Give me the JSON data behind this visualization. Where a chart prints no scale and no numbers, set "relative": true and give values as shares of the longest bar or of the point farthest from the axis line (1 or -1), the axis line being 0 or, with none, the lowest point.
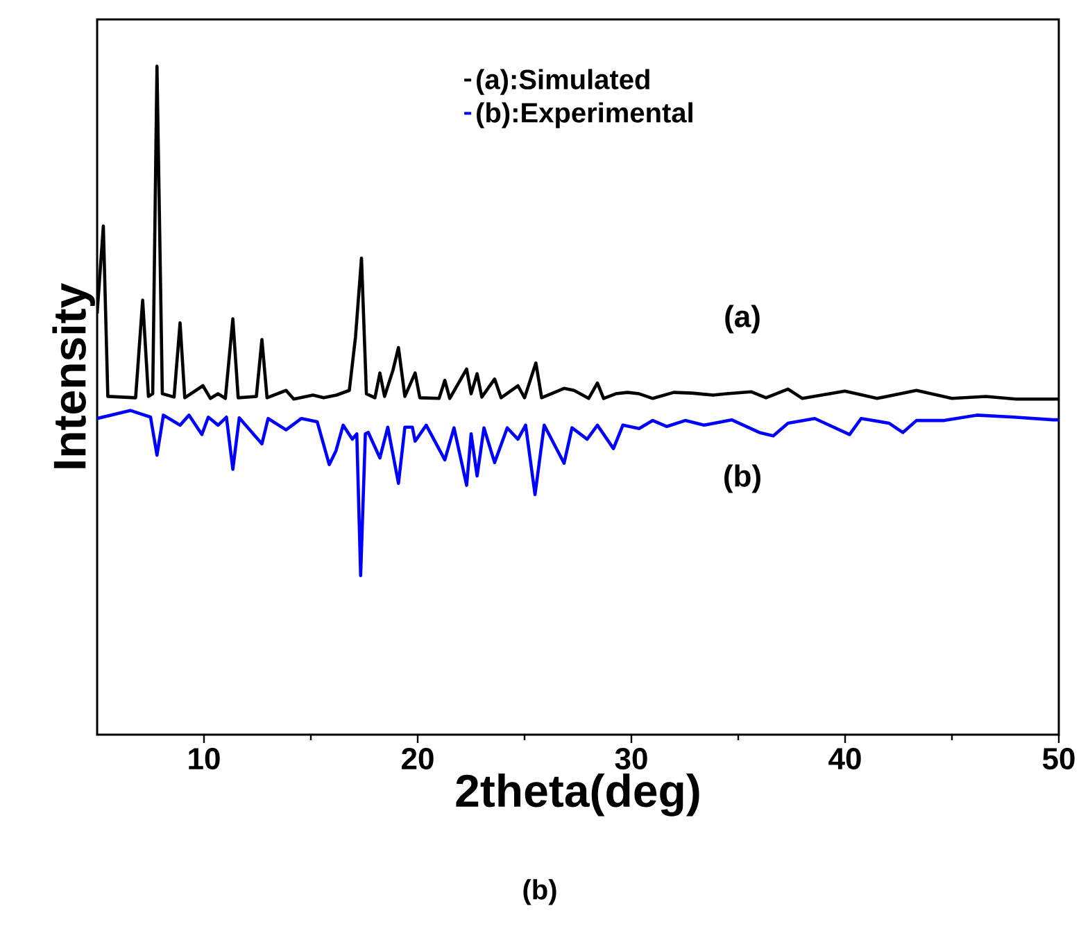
{
  "chart_data": {
    "type": "line",
    "relative": true,
    "xlabel": "2theta(deg)",
    "ylabel": "Intensity",
    "xlim": [
      5,
      50
    ],
    "xticks": [
      10,
      20,
      30,
      40,
      50
    ],
    "tick_labels": "x",
    "legend": "top",
    "grid": false,
    "marker": "none",
    "line_style": "solid",
    "annotations": [
      "(a)",
      "(b)",
      "(b)"
    ],
    "series": [
      {
        "name": "(a):Simulated",
        "color": "#000000",
        "x": [
          5.0,
          5.29,
          5.5,
          6.8,
          7.13,
          7.4,
          7.6,
          7.8,
          8.05,
          8.6,
          8.88,
          9.1,
          9.95,
          10.3,
          10.66,
          11.0,
          11.35,
          11.6,
          12.45,
          12.71,
          12.95,
          13.84,
          14.2,
          15.1,
          15.6,
          16.2,
          16.8,
          17.09,
          17.37,
          17.6,
          18.0,
          18.23,
          18.45,
          18.84,
          19.1,
          19.4,
          19.88,
          20.1,
          21.0,
          21.27,
          21.5,
          22.29,
          22.5,
          22.78,
          23.0,
          23.6,
          23.9,
          24.69,
          25.0,
          25.53,
          25.8,
          26.85,
          27.32,
          28.0,
          28.41,
          28.7,
          29.27,
          29.82,
          30.36,
          31.0,
          31.98,
          32.84,
          33.82,
          34.47,
          35.6,
          36.3,
          37.33,
          38.0,
          39.99,
          41.5,
          43.34,
          45.0,
          46.59,
          48.0,
          49.73,
          50
        ],
        "values": [
          0.63,
          0.761,
          0.506,
          0.504,
          0.65,
          0.506,
          0.51,
          1.0,
          0.51,
          0.505,
          0.616,
          0.504,
          0.522,
          0.503,
          0.51,
          0.503,
          0.622,
          0.504,
          0.506,
          0.591,
          0.504,
          0.515,
          0.502,
          0.508,
          0.504,
          0.508,
          0.515,
          0.595,
          0.713,
          0.51,
          0.504,
          0.541,
          0.506,
          0.545,
          0.579,
          0.506,
          0.541,
          0.504,
          0.503,
          0.53,
          0.503,
          0.547,
          0.51,
          0.54,
          0.505,
          0.532,
          0.504,
          0.522,
          0.504,
          0.556,
          0.504,
          0.518,
          0.515,
          0.503,
          0.526,
          0.503,
          0.51,
          0.512,
          0.51,
          0.503,
          0.512,
          0.511,
          0.508,
          0.51,
          0.513,
          0.504,
          0.517,
          0.503,
          0.514,
          0.503,
          0.515,
          0.503,
          0.506,
          0.502,
          0.502,
          0.502
        ]
      },
      {
        "name": "(b):Experimental",
        "color": "#0000ff",
        "x": [
          5.0,
          6.55,
          7.5,
          7.8,
          8.1,
          8.88,
          9.3,
          9.9,
          10.2,
          10.66,
          11.05,
          11.35,
          11.65,
          12.71,
          13.0,
          13.84,
          14.56,
          15.3,
          15.86,
          16.18,
          16.51,
          16.94,
          17.15,
          17.33,
          17.55,
          17.69,
          18.23,
          18.6,
          19.1,
          19.4,
          19.75,
          19.88,
          20.4,
          21.27,
          21.7,
          22.29,
          22.5,
          22.78,
          23.1,
          23.6,
          24.19,
          24.69,
          25.05,
          25.49,
          25.92,
          26.85,
          27.22,
          27.93,
          28.41,
          29.16,
          29.6,
          30.36,
          31.0,
          31.66,
          32.52,
          33.39,
          34.69,
          35.99,
          36.64,
          37.33,
          38.58,
          40.21,
          40.75,
          42.05,
          42.7,
          43.34,
          44.64,
          46.16,
          47.89,
          49.73,
          50
        ],
        "values": [
          0.473,
          0.485,
          0.475,
          0.418,
          0.478,
          0.463,
          0.478,
          0.449,
          0.475,
          0.463,
          0.475,
          0.397,
          0.474,
          0.435,
          0.473,
          0.456,
          0.473,
          0.468,
          0.404,
          0.425,
          0.463,
          0.442,
          0.45,
          0.238,
          0.45,
          0.452,
          0.414,
          0.46,
          0.376,
          0.46,
          0.46,
          0.439,
          0.463,
          0.411,
          0.459,
          0.373,
          0.45,
          0.387,
          0.459,
          0.407,
          0.459,
          0.442,
          0.463,
          0.359,
          0.463,
          0.406,
          0.459,
          0.442,
          0.463,
          0.428,
          0.463,
          0.458,
          0.47,
          0.461,
          0.47,
          0.463,
          0.471,
          0.452,
          0.447,
          0.466,
          0.473,
          0.449,
          0.473,
          0.466,
          0.452,
          0.47,
          0.47,
          0.478,
          0.475,
          0.471,
          0.471
        ]
      }
    ]
  }
}
